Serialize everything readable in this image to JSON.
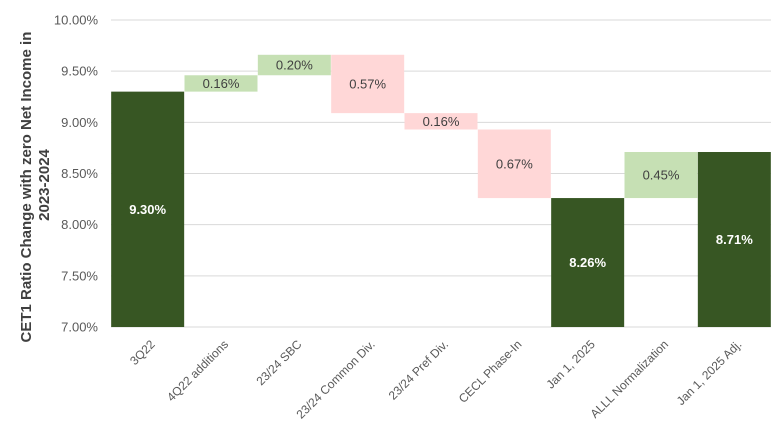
{
  "chart_data": {
    "type": "bar",
    "subtype": "waterfall",
    "title": "",
    "xlabel": "",
    "ylabel_lines": [
      "CET1 Ratio Change with zero Net Income in",
      "2023-2024"
    ],
    "ylim": [
      7.0,
      10.0
    ],
    "yticks": [
      "7.00%",
      "7.50%",
      "8.00%",
      "8.50%",
      "9.00%",
      "9.50%",
      "10.00%"
    ],
    "grid": true,
    "legend": "none",
    "categories": [
      "3Q22",
      "4Q22 additions",
      "23/24 SBC",
      "23/24 Common Div.",
      "23/24 Pref Div.",
      "CECL Phase-In",
      "Jan 1, 2025",
      "ALLL Normalization",
      "Jan 1, 2025 Adj."
    ],
    "bars": [
      {
        "kind": "total",
        "start": 7.0,
        "end": 9.3,
        "label": "9.30%"
      },
      {
        "kind": "increase",
        "start": 9.3,
        "end": 9.46,
        "label": "0.16%"
      },
      {
        "kind": "increase",
        "start": 9.46,
        "end": 9.66,
        "label": "0.20%"
      },
      {
        "kind": "decrease",
        "start": 9.66,
        "end": 9.09,
        "label": "0.57%"
      },
      {
        "kind": "decrease",
        "start": 9.09,
        "end": 8.93,
        "label": "0.16%"
      },
      {
        "kind": "decrease",
        "start": 8.93,
        "end": 8.26,
        "label": "0.67%"
      },
      {
        "kind": "total",
        "start": 7.0,
        "end": 8.26,
        "label": "8.26%"
      },
      {
        "kind": "increase",
        "start": 8.26,
        "end": 8.71,
        "label": "0.45%"
      },
      {
        "kind": "total",
        "start": 7.0,
        "end": 8.71,
        "label": "8.71%"
      }
    ],
    "colors": {
      "total": "#375623",
      "increase": "#c6e0b4",
      "decrease": "#ffd7d7",
      "total_text": "#ffffff",
      "delta_text": "#404040",
      "grid": "#d9d9d9"
    }
  }
}
